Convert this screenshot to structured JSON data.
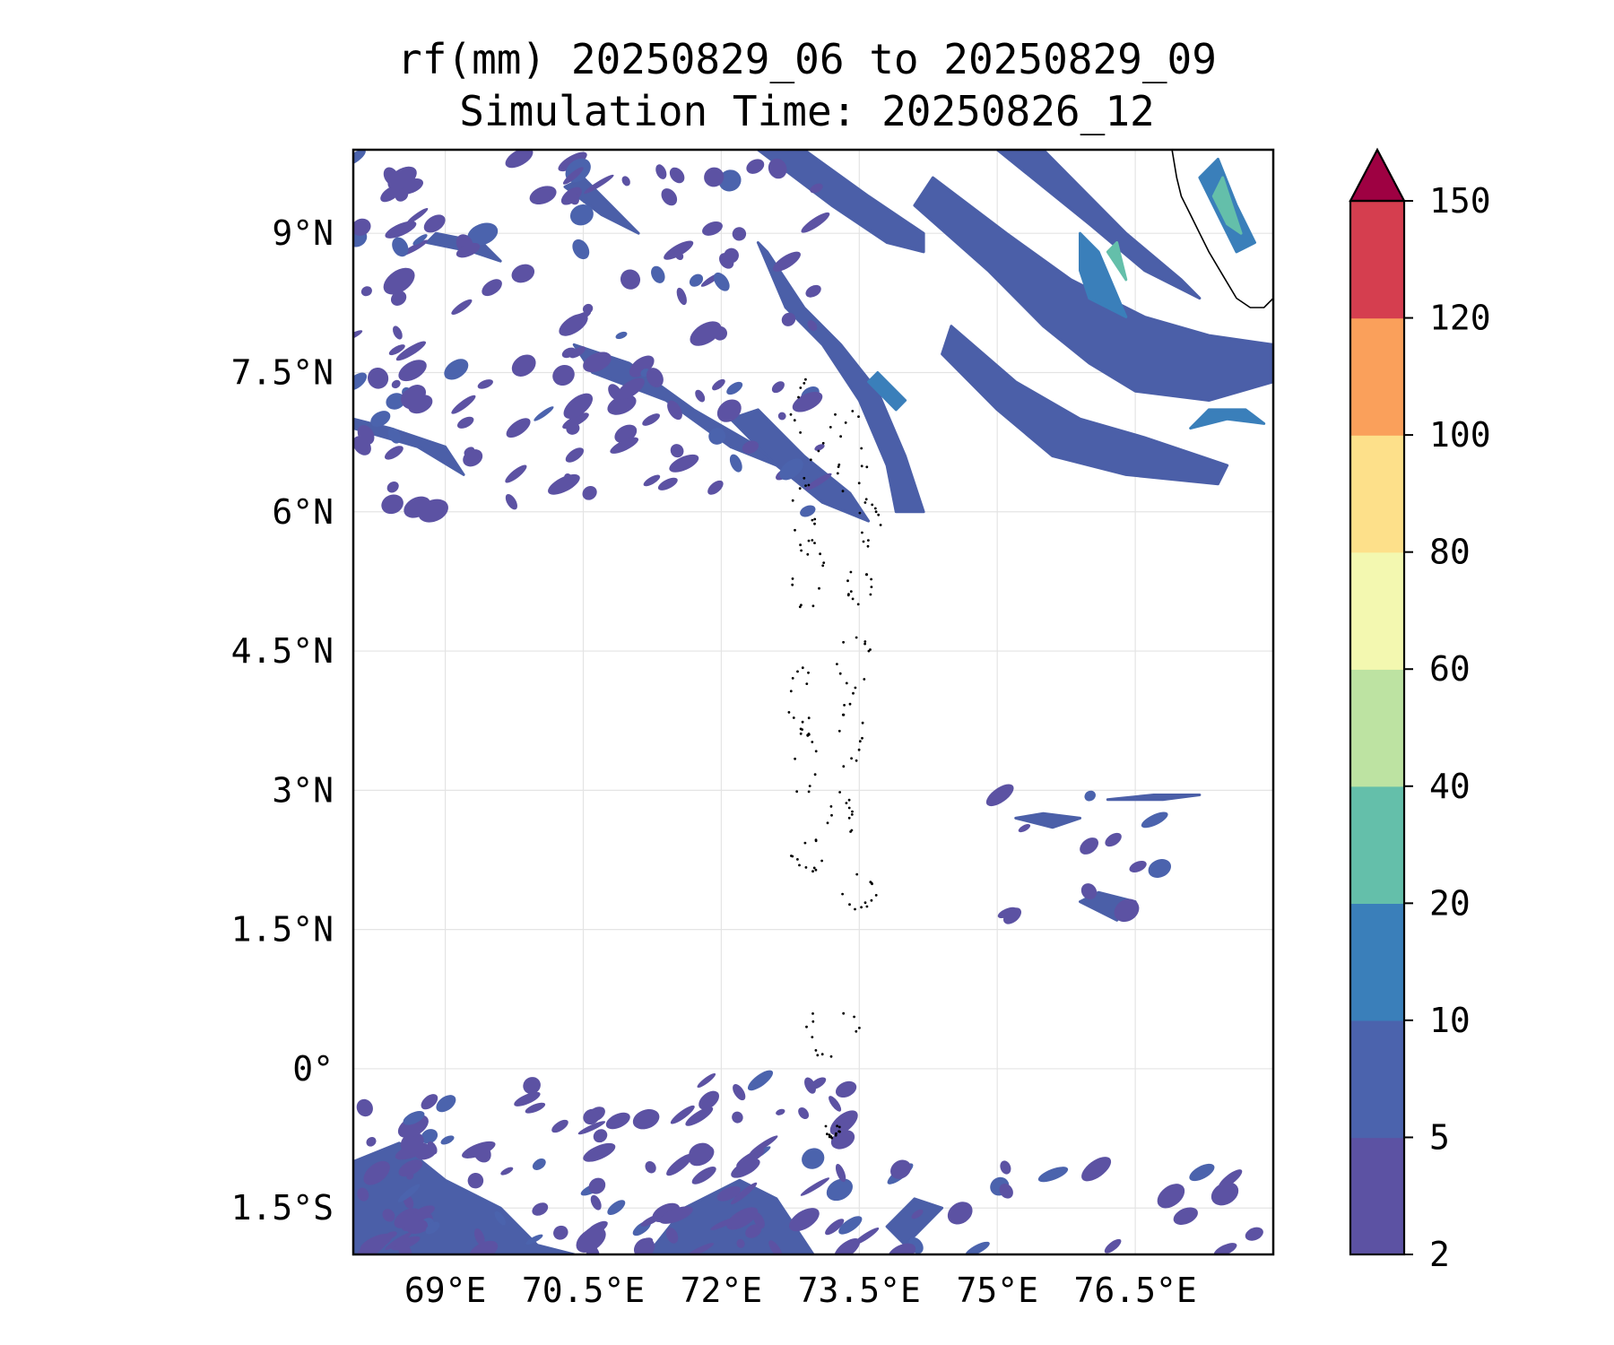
{
  "title": {
    "line1": "rf(mm) 20250829_06 to 20250829_09",
    "line2": "Simulation Time: 20250826_12"
  },
  "map": {
    "extent": {
      "lon_min": 68.0,
      "lon_max": 78.0,
      "lat_min": -2.0,
      "lat_max": 9.9
    },
    "lon_ticks": [
      {
        "value": 69.0,
        "label": "69°E"
      },
      {
        "value": 70.5,
        "label": "70.5°E"
      },
      {
        "value": 72.0,
        "label": "72°E"
      },
      {
        "value": 73.5,
        "label": "73.5°E"
      },
      {
        "value": 75.0,
        "label": "75°E"
      },
      {
        "value": 76.5,
        "label": "76.5°E"
      }
    ],
    "lat_ticks": [
      {
        "value": 9.0,
        "label": "9°N"
      },
      {
        "value": 7.5,
        "label": "7.5°N"
      },
      {
        "value": 6.0,
        "label": "6°N"
      },
      {
        "value": 4.5,
        "label": "4.5°N"
      },
      {
        "value": 3.0,
        "label": "3°N"
      },
      {
        "value": 1.5,
        "label": "1.5°N"
      },
      {
        "value": 0.0,
        "label": "0°"
      },
      {
        "value": -1.5,
        "label": "1.5°S"
      }
    ],
    "gridlines": true,
    "rain_bands": [
      {
        "level_color": "#4b5fa8",
        "points": [
          [
            73.9,
            6.0
          ],
          [
            73.8,
            6.5
          ],
          [
            73.5,
            7.2
          ],
          [
            73.1,
            7.8
          ],
          [
            72.7,
            8.2
          ],
          [
            72.4,
            8.9
          ],
          [
            72.5,
            8.8
          ],
          [
            72.9,
            8.2
          ],
          [
            73.3,
            7.8
          ],
          [
            73.7,
            7.3
          ],
          [
            74.0,
            6.6
          ],
          [
            74.2,
            6.0
          ]
        ]
      },
      {
        "level_color": "#4b5fa8",
        "points": [
          [
            74.3,
            9.6
          ],
          [
            75.1,
            9.0
          ],
          [
            75.8,
            8.5
          ],
          [
            76.6,
            8.1
          ],
          [
            77.3,
            7.9
          ],
          [
            78.0,
            7.8
          ],
          [
            78.0,
            7.4
          ],
          [
            77.3,
            7.2
          ],
          [
            76.5,
            7.3
          ],
          [
            76.0,
            7.6
          ],
          [
            75.5,
            8.0
          ],
          [
            74.9,
            8.6
          ],
          [
            74.1,
            9.3
          ]
        ]
      },
      {
        "level_color": "#4b5fa8",
        "points": [
          [
            72.4,
            9.9
          ],
          [
            73.2,
            9.3
          ],
          [
            73.8,
            8.9
          ],
          [
            74.2,
            8.8
          ],
          [
            74.2,
            9.0
          ],
          [
            73.6,
            9.4
          ],
          [
            72.9,
            9.9
          ]
        ]
      },
      {
        "level_color": "#4b5fa8",
        "points": [
          [
            74.5,
            8.0
          ],
          [
            75.2,
            7.4
          ],
          [
            75.9,
            7.0
          ],
          [
            76.6,
            6.8
          ],
          [
            77.5,
            6.5
          ],
          [
            77.4,
            6.3
          ],
          [
            76.4,
            6.4
          ],
          [
            75.6,
            6.6
          ],
          [
            75.0,
            7.1
          ],
          [
            74.4,
            7.7
          ]
        ]
      },
      {
        "level_color": "#4b5fa8",
        "points": [
          [
            75.0,
            9.9
          ],
          [
            76.0,
            9.1
          ],
          [
            76.6,
            8.6
          ],
          [
            77.2,
            8.3
          ],
          [
            77.0,
            8.5
          ],
          [
            76.4,
            9.0
          ],
          [
            75.9,
            9.5
          ],
          [
            75.5,
            9.9
          ]
        ]
      },
      {
        "level_color": "#4b5fa8",
        "points": [
          [
            70.6,
            7.5
          ],
          [
            71.4,
            7.2
          ],
          [
            72.1,
            6.7
          ],
          [
            72.6,
            6.5
          ],
          [
            72.4,
            6.7
          ],
          [
            71.7,
            7.1
          ],
          [
            71.0,
            7.6
          ],
          [
            70.4,
            7.8
          ]
        ]
      },
      {
        "level_color": "#4b5fa8",
        "points": [
          [
            72.1,
            7.0
          ],
          [
            72.6,
            6.5
          ],
          [
            73.1,
            6.1
          ],
          [
            73.6,
            5.9
          ],
          [
            73.4,
            6.2
          ],
          [
            72.9,
            6.6
          ],
          [
            72.4,
            7.1
          ]
        ]
      },
      {
        "level_color": "#4b5fa8",
        "points": [
          [
            68.0,
            6.9
          ],
          [
            68.7,
            6.7
          ],
          [
            69.2,
            6.4
          ],
          [
            69.0,
            6.7
          ],
          [
            68.4,
            6.9
          ],
          [
            68.0,
            7.0
          ]
        ]
      },
      {
        "level_color": "#4b5fa8",
        "points": [
          [
            68.0,
            -2.0
          ],
          [
            68.0,
            -1.0
          ],
          [
            68.5,
            -0.8
          ],
          [
            69.0,
            -1.2
          ],
          [
            69.6,
            -1.5
          ],
          [
            70.0,
            -1.9
          ],
          [
            70.4,
            -2.0
          ]
        ]
      },
      {
        "level_color": "#4b5fa8",
        "points": [
          [
            71.2,
            -2.0
          ],
          [
            71.6,
            -1.5
          ],
          [
            72.2,
            -1.2
          ],
          [
            72.6,
            -1.4
          ],
          [
            73.0,
            -2.0
          ]
        ]
      },
      {
        "level_color": "#4b5fa8",
        "points": [
          [
            70.3,
            9.5
          ],
          [
            70.7,
            9.2
          ],
          [
            71.1,
            9.0
          ],
          [
            70.8,
            9.3
          ],
          [
            70.5,
            9.6
          ]
        ]
      },
      {
        "level_color": "#4b5fa8",
        "points": [
          [
            68.8,
            8.9
          ],
          [
            69.3,
            8.8
          ],
          [
            69.6,
            8.7
          ],
          [
            69.4,
            8.9
          ],
          [
            68.9,
            9.0
          ]
        ]
      },
      {
        "level_color": "#4b5fa8",
        "points": [
          [
            75.2,
            2.7
          ],
          [
            75.6,
            2.6
          ],
          [
            75.9,
            2.7
          ],
          [
            75.5,
            2.75
          ]
        ]
      },
      {
        "level_color": "#4b5fa8",
        "points": [
          [
            76.2,
            2.9
          ],
          [
            76.8,
            2.9
          ],
          [
            77.2,
            2.95
          ],
          [
            76.7,
            2.95
          ]
        ]
      },
      {
        "level_color": "#4b5fa8",
        "points": [
          [
            73.8,
            -1.7
          ],
          [
            74.1,
            -1.4
          ],
          [
            74.4,
            -1.5
          ],
          [
            74.0,
            -1.9
          ]
        ]
      },
      {
        "level_color": "#4b5fa8",
        "points": [
          [
            75.9,
            1.8
          ],
          [
            76.3,
            1.6
          ],
          [
            76.5,
            1.8
          ],
          [
            76.1,
            1.9
          ]
        ]
      },
      {
        "level_color": "#3a7fba",
        "points": [
          [
            77.1,
            6.9
          ],
          [
            77.5,
            7.0
          ],
          [
            77.9,
            6.95
          ],
          [
            77.7,
            7.1
          ],
          [
            77.3,
            7.1
          ]
        ]
      },
      {
        "level_color": "#3a7fba",
        "points": [
          [
            76.0,
            8.3
          ],
          [
            76.4,
            8.1
          ],
          [
            76.1,
            8.8
          ],
          [
            75.9,
            9.0
          ],
          [
            75.9,
            8.6
          ]
        ]
      },
      {
        "level_color": "#3a7fba",
        "points": [
          [
            77.2,
            9.6
          ],
          [
            77.4,
            9.2
          ],
          [
            77.6,
            8.8
          ],
          [
            77.8,
            8.9
          ],
          [
            77.6,
            9.3
          ],
          [
            77.4,
            9.8
          ]
        ]
      },
      {
        "level_color": "#64bfaa",
        "points": [
          [
            77.35,
            9.4
          ],
          [
            77.5,
            9.1
          ],
          [
            77.65,
            9.0
          ],
          [
            77.55,
            9.3
          ],
          [
            77.45,
            9.6
          ]
        ]
      },
      {
        "level_color": "#64bfaa",
        "points": [
          [
            76.2,
            8.8
          ],
          [
            76.4,
            8.5
          ],
          [
            76.3,
            8.9
          ]
        ]
      },
      {
        "level_color": "#3a7fba",
        "points": [
          [
            73.6,
            7.4
          ],
          [
            73.9,
            7.1
          ],
          [
            74.0,
            7.2
          ],
          [
            73.7,
            7.5
          ]
        ]
      }
    ],
    "coast": [
      [
        76.9,
        9.9
      ],
      [
        76.95,
        9.6
      ],
      [
        77.0,
        9.4
      ],
      [
        77.1,
        9.2
      ],
      [
        77.2,
        9.0
      ],
      [
        77.3,
        8.8
      ],
      [
        77.45,
        8.55
      ],
      [
        77.6,
        8.3
      ],
      [
        77.75,
        8.2
      ],
      [
        77.9,
        8.2
      ],
      [
        78.0,
        8.3
      ]
    ]
  },
  "colorbar": {
    "levels": [
      2,
      5,
      10,
      20,
      40,
      60,
      80,
      100,
      120,
      150
    ],
    "labels": [
      "2",
      "5",
      "10",
      "20",
      "40",
      "60",
      "80",
      "100",
      "120",
      "150"
    ],
    "colors": [
      "#5c52a3",
      "#4b63ad",
      "#3a7fba",
      "#64bfaa",
      "#bde3a2",
      "#f3f8b0",
      "#fde08a",
      "#faa05b",
      "#d53e4f"
    ],
    "extend_color": "#9e0142"
  }
}
